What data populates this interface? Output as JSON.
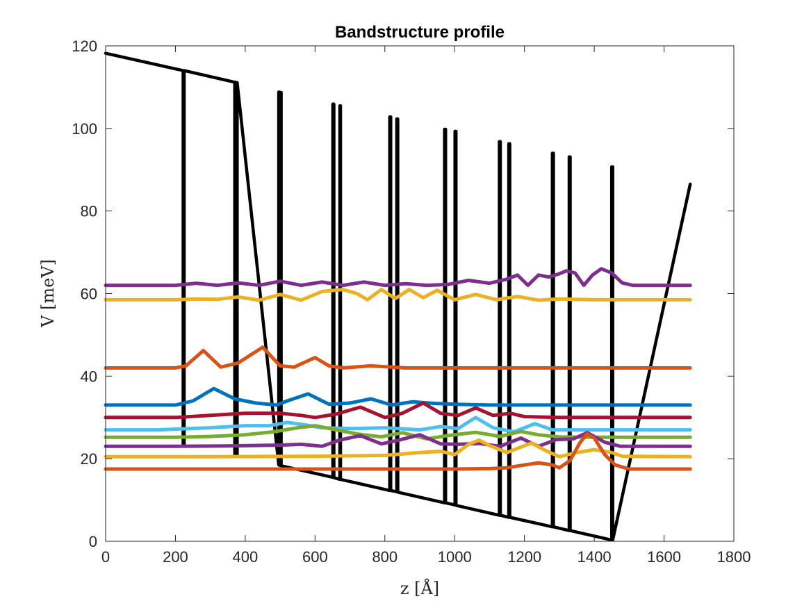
{
  "chart_data": {
    "type": "line",
    "title": "Bandstructure profile",
    "xlabel": "z [Å]",
    "ylabel": "V [meV]",
    "xlim": [
      0,
      1800
    ],
    "ylim": [
      0,
      120
    ],
    "xticks": [
      "0",
      "200",
      "400",
      "600",
      "800",
      "1000",
      "1200",
      "1400",
      "1600",
      "1800"
    ],
    "yticks": [
      "0",
      "20",
      "40",
      "60",
      "80",
      "100",
      "120"
    ],
    "grid": false,
    "legend": "none",
    "series": [
      {
        "role": "potential",
        "color": "#000000",
        "x": [
          0,
          222,
          222,
          225,
          225,
          370,
          370,
          372,
          372,
          375,
          375,
          377,
          377,
          496,
          496,
          498,
          498,
          501,
          501,
          503,
          503,
          651,
          651,
          654,
          654,
          671,
          671,
          673,
          673,
          814,
          814,
          817,
          817,
          834,
          834,
          837,
          837,
          971,
          971,
          974,
          974,
          1001,
          1001,
          1004,
          1004,
          1128,
          1128,
          1131,
          1131,
          1155,
          1155,
          1158,
          1158,
          1280,
          1280,
          1283,
          1283,
          1328,
          1328,
          1331,
          1331,
          1450,
          1450,
          1453,
          1453,
          1675
        ],
        "y": [
          118.2,
          114,
          23.6,
          23.5,
          114,
          111.2,
          20.8,
          20.8,
          111.2,
          111.1,
          20.7,
          20.7,
          111.1,
          18.5,
          108.8,
          108.8,
          18.4,
          18.4,
          108.7,
          108.7,
          18.3,
          15.5,
          105.9,
          105.9,
          15.4,
          15,
          105.5,
          105.5,
          15,
          12.3,
          102.8,
          102.8,
          12.3,
          12,
          102.3,
          102.3,
          11.9,
          9.3,
          99.8,
          99.8,
          9.3,
          8.8,
          99.3,
          99.3,
          8.7,
          6.3,
          96.8,
          96.8,
          6.3,
          5.8,
          96.3,
          96.3,
          5.8,
          3.5,
          94,
          94,
          3.5,
          2.6,
          93.1,
          93.1,
          2.6,
          0.3,
          90.7,
          90.7,
          0.3,
          86.5
        ]
      },
      {
        "color": "#7E2F8E",
        "x": [
          0,
          200,
          260,
          320,
          380,
          440,
          500,
          560,
          620,
          680,
          740,
          800,
          860,
          920,
          980,
          1040,
          1100,
          1150,
          1180,
          1210,
          1240,
          1270,
          1300,
          1320,
          1345,
          1370,
          1395,
          1420,
          1450,
          1480,
          1510,
          1675
        ],
        "y": [
          62,
          62,
          62.5,
          62,
          62.6,
          62,
          63,
          62,
          62.8,
          62,
          62.8,
          62,
          62.4,
          62,
          62.2,
          63.2,
          62.5,
          63.5,
          64.5,
          62,
          64.5,
          64,
          64.8,
          65.5,
          65,
          62,
          64.5,
          66,
          65,
          62.6,
          62,
          62
        ]
      },
      {
        "color": "#EDB120",
        "x": [
          0,
          200,
          260,
          320,
          380,
          440,
          500,
          560,
          620,
          680,
          720,
          750,
          790,
          830,
          870,
          910,
          950,
          1000,
          1060,
          1120,
          1180,
          1240,
          1300,
          1400,
          1500,
          1675
        ],
        "y": [
          58.5,
          58.5,
          58.7,
          58.6,
          59.2,
          58.4,
          59.8,
          58.4,
          60.5,
          61,
          60,
          58.5,
          61,
          58.8,
          61,
          59,
          60.8,
          58.5,
          59.8,
          58.5,
          59.3,
          58.4,
          58.7,
          58.5,
          58.5,
          58.5
        ]
      },
      {
        "color": "#D95319",
        "x": [
          0,
          200,
          230,
          280,
          330,
          380,
          450,
          500,
          540,
          600,
          640,
          680,
          760,
          860,
          1000,
          1200,
          1675
        ],
        "y": [
          42,
          42,
          42.5,
          46.2,
          42.2,
          43.2,
          47,
          42.5,
          42.2,
          44.5,
          42.5,
          42,
          42.5,
          42,
          42,
          42,
          42
        ]
      },
      {
        "color": "#0072BD",
        "x": [
          0,
          200,
          250,
          310,
          370,
          430,
          490,
          520,
          580,
          640,
          700,
          760,
          820,
          880,
          940,
          1000,
          1100,
          1200,
          1675
        ],
        "y": [
          33,
          33,
          34,
          37,
          34.5,
          33.5,
          33,
          34,
          35.7,
          33.2,
          33.5,
          34.5,
          33,
          33.8,
          33.4,
          33.2,
          33,
          33,
          33
        ]
      },
      {
        "color": "#A2142F",
        "x": [
          0,
          200,
          300,
          400,
          500,
          560,
          600,
          660,
          730,
          800,
          850,
          910,
          960,
          1010,
          1060,
          1110,
          1160,
          1200,
          1300,
          1675
        ],
        "y": [
          30,
          30,
          30.5,
          31,
          31,
          30.5,
          30,
          30.8,
          32.5,
          30,
          31,
          33.5,
          31,
          30.5,
          32.3,
          30.5,
          31,
          30.2,
          30,
          30
        ]
      },
      {
        "color": "#4DBEEE",
        "x": [
          0,
          150,
          300,
          400,
          470,
          520,
          570,
          620,
          700,
          800,
          900,
          960,
          1010,
          1060,
          1110,
          1170,
          1230,
          1280,
          1330,
          1400,
          1675
        ],
        "y": [
          27,
          27,
          27.5,
          28,
          28,
          28.8,
          28.2,
          27.5,
          27.3,
          27.5,
          27,
          27.8,
          27.3,
          30,
          27.5,
          26.5,
          28.5,
          27,
          27,
          27,
          27
        ]
      },
      {
        "color": "#77AC30",
        "x": [
          0,
          200,
          300,
          400,
          480,
          550,
          600,
          660,
          720,
          790,
          850,
          920,
          980,
          1060,
          1130,
          1190,
          1240,
          1300,
          1400,
          1675
        ],
        "y": [
          25.2,
          25.2,
          25.4,
          25.8,
          26.5,
          27.5,
          28,
          27,
          26,
          25.3,
          26.3,
          24.8,
          25.6,
          26.4,
          25.4,
          26.6,
          25.8,
          25.3,
          25.2,
          25.2
        ]
      },
      {
        "color": "#7E2F8E",
        "x": [
          0,
          200,
          350,
          500,
          560,
          620,
          670,
          730,
          790,
          840,
          900,
          960,
          1010,
          1070,
          1130,
          1190,
          1240,
          1290,
          1340,
          1380,
          1430,
          1475,
          1675
        ],
        "y": [
          23,
          23,
          23.1,
          23.3,
          23.5,
          23,
          24.5,
          25.6,
          23.6,
          24.5,
          25.8,
          23.6,
          23.5,
          23.7,
          23,
          25,
          23,
          24.6,
          24.8,
          26.3,
          24,
          23,
          23
        ]
      },
      {
        "color": "#EDB120",
        "x": [
          0,
          300,
          600,
          800,
          900,
          960,
          1000,
          1040,
          1070,
          1100,
          1150,
          1180,
          1220,
          1260,
          1300,
          1350,
          1400,
          1450,
          1480,
          1675
        ],
        "y": [
          20.5,
          20.5,
          20.6,
          20.8,
          21.5,
          21.8,
          21,
          23.5,
          24.5,
          23.2,
          21.5,
          22.5,
          23.8,
          22,
          20.5,
          21.5,
          22.2,
          21.5,
          20.6,
          20.5
        ]
      },
      {
        "color": "#D95319",
        "x": [
          0,
          600,
          1000,
          1100,
          1150,
          1200,
          1240,
          1280,
          1300,
          1330,
          1360,
          1380,
          1400,
          1430,
          1460,
          1500,
          1675
        ],
        "y": [
          17.5,
          17.5,
          17.5,
          17.6,
          17.8,
          18.5,
          19,
          18.5,
          17.8,
          19.5,
          24,
          26,
          25,
          21,
          18.5,
          17.5,
          17.5
        ]
      }
    ]
  }
}
